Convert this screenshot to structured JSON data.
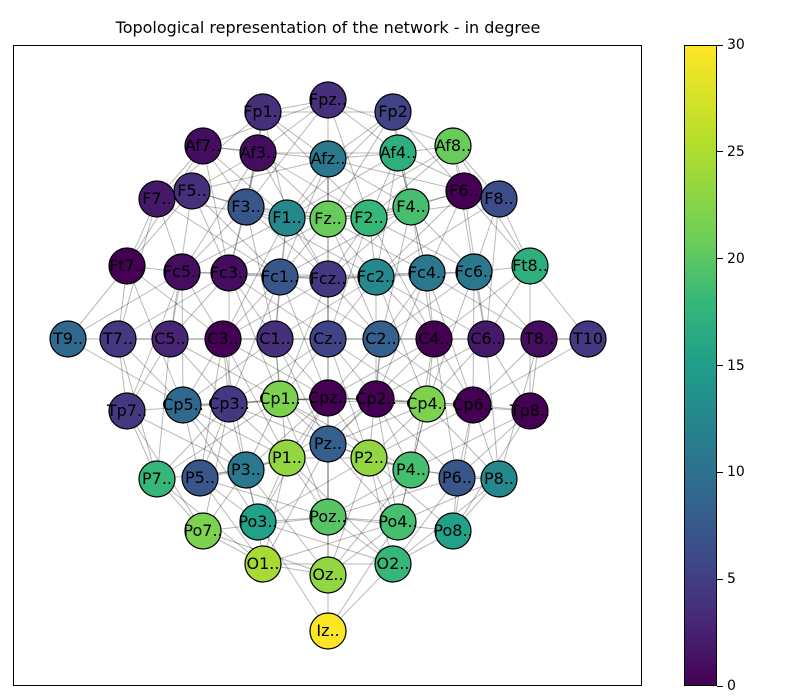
{
  "title": "Topological representation of the network - in degree",
  "colorbar": {
    "min": 0,
    "max": 30,
    "ticks": [
      "0",
      "5",
      "10",
      "15",
      "20",
      "25",
      "30"
    ],
    "colormap": "viridis"
  },
  "nodes": [
    {
      "id": "Fp1",
      "label": "Fp1..",
      "degree": 4
    },
    {
      "id": "Fpz",
      "label": "Fpz..",
      "degree": 4
    },
    {
      "id": "Fp2",
      "label": "Fp2",
      "degree": 6
    },
    {
      "id": "Af7",
      "label": "Af7..",
      "degree": 1
    },
    {
      "id": "Af3",
      "label": "Af3..",
      "degree": 1
    },
    {
      "id": "Afz",
      "label": "Afz..",
      "degree": 12
    },
    {
      "id": "Af4",
      "label": "Af4..",
      "degree": 19
    },
    {
      "id": "Af8",
      "label": "Af8..",
      "degree": 23
    },
    {
      "id": "F7",
      "label": "F7..",
      "degree": 2
    },
    {
      "id": "F5",
      "label": "F5..",
      "degree": 4
    },
    {
      "id": "F3",
      "label": "F3..",
      "degree": 8
    },
    {
      "id": "F1",
      "label": "F1..",
      "degree": 14
    },
    {
      "id": "Fz",
      "label": "Fz..",
      "degree": 23
    },
    {
      "id": "F2",
      "label": "F2..",
      "degree": 20
    },
    {
      "id": "F4",
      "label": "F4..",
      "degree": 21
    },
    {
      "id": "F6",
      "label": "F6..",
      "degree": 0
    },
    {
      "id": "F8",
      "label": "F8..",
      "degree": 7
    },
    {
      "id": "Ft7",
      "label": "Ft7..",
      "degree": 0
    },
    {
      "id": "Fc5",
      "label": "Fc5..",
      "degree": 1
    },
    {
      "id": "Fc3",
      "label": "Fc3..",
      "degree": 1
    },
    {
      "id": "Fc1",
      "label": "Fc1..",
      "degree": 8
    },
    {
      "id": "Fcz",
      "label": "Fcz..",
      "degree": 5
    },
    {
      "id": "Fc2",
      "label": "Fc2..",
      "degree": 14
    },
    {
      "id": "Fc4",
      "label": "Fc4..",
      "degree": 12
    },
    {
      "id": "Fc6",
      "label": "Fc6..",
      "degree": 12
    },
    {
      "id": "Ft8",
      "label": "Ft8..",
      "degree": 19
    },
    {
      "id": "T9",
      "label": "T9..",
      "degree": 10
    },
    {
      "id": "T7",
      "label": "T7..",
      "degree": 5
    },
    {
      "id": "C5",
      "label": "C5..",
      "degree": 3
    },
    {
      "id": "C3",
      "label": "C3..",
      "degree": 0
    },
    {
      "id": "C1",
      "label": "C1..",
      "degree": 4
    },
    {
      "id": "Cz",
      "label": "Cz..",
      "degree": 6
    },
    {
      "id": "C2",
      "label": "C2..",
      "degree": 9
    },
    {
      "id": "C4",
      "label": "C4..",
      "degree": 0
    },
    {
      "id": "C6",
      "label": "C6..",
      "degree": 2
    },
    {
      "id": "T8",
      "label": "T8..",
      "degree": 1
    },
    {
      "id": "T10",
      "label": "T10",
      "degree": 5
    },
    {
      "id": "Tp7",
      "label": "Tp7..",
      "degree": 5
    },
    {
      "id": "Cp5",
      "label": "Cp5..",
      "degree": 10
    },
    {
      "id": "Cp3",
      "label": "Cp3..",
      "degree": 5
    },
    {
      "id": "Cp1",
      "label": "Cp1..",
      "degree": 24
    },
    {
      "id": "Cpz",
      "label": "Cpz..",
      "degree": 0
    },
    {
      "id": "Cp2",
      "label": "Cp2..",
      "degree": 0
    },
    {
      "id": "Cp4",
      "label": "Cp4..",
      "degree": 24
    },
    {
      "id": "Cp6",
      "label": "Cp6..",
      "degree": 0
    },
    {
      "id": "Tp8",
      "label": "Tp8..",
      "degree": 0
    },
    {
      "id": "Pz",
      "label": "Pz..",
      "degree": 9
    },
    {
      "id": "P1",
      "label": "P1..",
      "degree": 25
    },
    {
      "id": "P2",
      "label": "P2..",
      "degree": 25
    },
    {
      "id": "P7",
      "label": "P7..",
      "degree": 20
    },
    {
      "id": "P5",
      "label": "P5..",
      "degree": 8
    },
    {
      "id": "P3",
      "label": "P3..",
      "degree": 12
    },
    {
      "id": "P4",
      "label": "P4..",
      "degree": 21
    },
    {
      "id": "P6",
      "label": "P6..",
      "degree": 8
    },
    {
      "id": "P8",
      "label": "P8..",
      "degree": 14
    },
    {
      "id": "Po7",
      "label": "Po7..",
      "degree": 24
    },
    {
      "id": "Po3",
      "label": "Po3..",
      "degree": 17
    },
    {
      "id": "Poz",
      "label": "Poz..",
      "degree": 22
    },
    {
      "id": "Po4",
      "label": "Po4..",
      "degree": 21
    },
    {
      "id": "Po8",
      "label": "Po8..",
      "degree": 17
    },
    {
      "id": "O1",
      "label": "O1..",
      "degree": 26
    },
    {
      "id": "Oz",
      "label": "Oz..",
      "degree": 25
    },
    {
      "id": "O2",
      "label": "O2..",
      "degree": 20
    },
    {
      "id": "Iz",
      "label": "Iz..",
      "degree": 30
    }
  ]
}
